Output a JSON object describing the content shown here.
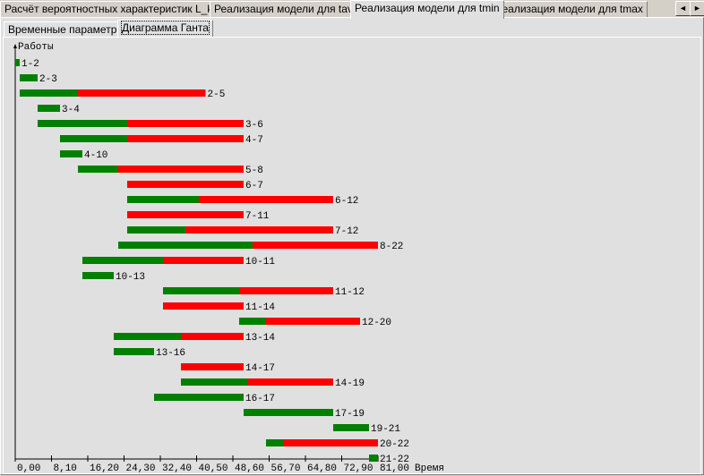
{
  "tabs": [
    {
      "label": "Расчёт вероятностных характеристик L_kp",
      "active": false
    },
    {
      "label": "Реализация модели для tavg",
      "active": false
    },
    {
      "label": "Реализация модели для tmin",
      "active": true
    },
    {
      "label": "Реализация модели для tmax",
      "active": false
    }
  ],
  "scroll": {
    "left": "◄",
    "right": "►"
  },
  "subtabs": [
    {
      "label": "Временные параметры",
      "active": false
    },
    {
      "label": "Диаграмма Ганта",
      "active": true
    }
  ],
  "chart_data": {
    "type": "gantt",
    "ylabel": "Работы",
    "xlabel": "Время",
    "xlim": [
      0,
      81
    ],
    "xticks": [
      "0,00",
      "8,10",
      "16,20",
      "24,30",
      "32,40",
      "40,50",
      "48,60",
      "56,70",
      "64,80",
      "72,90",
      "81,00"
    ],
    "colors": {
      "duration": "#008000",
      "reserve": "#ff0000"
    },
    "tasks": [
      {
        "name": "1-2",
        "start": 0,
        "green_end": 1,
        "red_end": 1
      },
      {
        "name": "2-3",
        "start": 1,
        "green_end": 5,
        "red_end": 5
      },
      {
        "name": "2-5",
        "start": 1,
        "green_end": 14,
        "red_end": 42.5
      },
      {
        "name": "3-4",
        "start": 5,
        "green_end": 10,
        "red_end": 10
      },
      {
        "name": "3-6",
        "start": 5,
        "green_end": 25,
        "red_end": 51
      },
      {
        "name": "4-7",
        "start": 10,
        "green_end": 25,
        "red_end": 51
      },
      {
        "name": "4-10",
        "start": 10,
        "green_end": 15,
        "red_end": 15
      },
      {
        "name": "5-8",
        "start": 14,
        "green_end": 23,
        "red_end": 51
      },
      {
        "name": "6-7",
        "start": 25,
        "green_end": 25,
        "red_end": 51
      },
      {
        "name": "6-12",
        "start": 25,
        "green_end": 41,
        "red_end": 71
      },
      {
        "name": "7-11",
        "start": 25,
        "green_end": 25,
        "red_end": 51
      },
      {
        "name": "7-12",
        "start": 25,
        "green_end": 38,
        "red_end": 71
      },
      {
        "name": "8-22",
        "start": 23,
        "green_end": 53,
        "red_end": 81
      },
      {
        "name": "10-11",
        "start": 15,
        "green_end": 33,
        "red_end": 51
      },
      {
        "name": "10-13",
        "start": 15,
        "green_end": 22,
        "red_end": 22
      },
      {
        "name": "11-12",
        "start": 33,
        "green_end": 50,
        "red_end": 71
      },
      {
        "name": "11-14",
        "start": 33,
        "green_end": 33,
        "red_end": 51
      },
      {
        "name": "12-20",
        "start": 50,
        "green_end": 56,
        "red_end": 77
      },
      {
        "name": "13-14",
        "start": 22,
        "green_end": 37,
        "red_end": 51
      },
      {
        "name": "13-16",
        "start": 22,
        "green_end": 31,
        "red_end": 31
      },
      {
        "name": "14-17",
        "start": 37,
        "green_end": 37,
        "red_end": 51
      },
      {
        "name": "14-19",
        "start": 37,
        "green_end": 52,
        "red_end": 71
      },
      {
        "name": "16-17",
        "start": 31,
        "green_end": 51,
        "red_end": 51
      },
      {
        "name": "17-19",
        "start": 51,
        "green_end": 71,
        "red_end": 71
      },
      {
        "name": "19-21",
        "start": 71,
        "green_end": 79,
        "red_end": 79
      },
      {
        "name": "20-22",
        "start": 56,
        "green_end": 60,
        "red_end": 81
      },
      {
        "name": "21-22",
        "start": 79,
        "green_end": 81,
        "red_end": 81
      }
    ]
  }
}
